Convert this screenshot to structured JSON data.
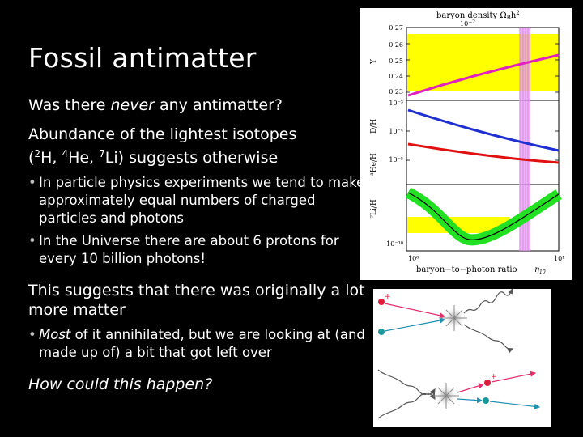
{
  "slide": {
    "title": "Fossil antimatter",
    "q_pre": "Was there ",
    "q_em": "never",
    "q_post": " any antimatter?",
    "abund_line1": "Abundance of the lightest isotopes",
    "abund_open": "(",
    "abund_sup_h": "2",
    "abund_h": "H, ",
    "abund_sup_he": "4",
    "abund_he": "He, ",
    "abund_sup_li": "7",
    "abund_li": "Li) suggests otherwise",
    "bullet1": "In particle physics experiments we tend to make approximately equal numbers of charged particles and photons",
    "bullet2": "In the Universe there are about 6 protons for every 10 billion photons!",
    "suggests": "This suggests that there was originally a lot more matter",
    "bullet3_em": "Most",
    "bullet3_rest": " of it annihilated, but we are looking at (and made up of) a bit that got left over",
    "closing": "How could this happen?"
  },
  "plot": {
    "top_axis_title": "baryon density Ω",
    "top_axis_sub": "B",
    "top_axis_h2": "h",
    "top_axis_exp": "2",
    "top_tick": "10",
    "top_tick_exp": "−2",
    "y_tick_027": "0.27",
    "y_tick_026": "0.26",
    "y_tick_025": "0.25",
    "y_tick_024": "0.24",
    "y_tick_023": "0.23",
    "y_label_Y": "Y",
    "y_label_DH": "D/H",
    "y_label_He3H": "³He/H",
    "y_label_Li7H": "⁷Li/H",
    "tick_m3": "10⁻³",
    "tick_m4": "10⁻⁴",
    "tick_m5": "10⁻⁵",
    "tick_m10": "10⁻¹⁰",
    "bottom_tick_left": "10⁰",
    "bottom_tick_right": "10¹",
    "bottom_axis_title": "baryon−to−photon ratio",
    "bottom_axis_sym": "η",
    "bottom_axis_sym_sub": "10",
    "colors": {
      "band_yellow": "#ffff00",
      "he4_curve": "#e020c0",
      "dh_curve": "#1f2fd0",
      "he3_curve": "#e01010",
      "li7_band": "#22e022",
      "li7_curve": "#000000",
      "vertical_band": "#e79af0"
    }
  },
  "diagram": {
    "plus": "+",
    "colors": {
      "particle_red": "#e21b3d",
      "particle_teal": "#1a9a9a",
      "line_red": "#e0306a",
      "line_teal": "#2090b0",
      "photon": "#555555",
      "flash": "#888888"
    }
  }
}
